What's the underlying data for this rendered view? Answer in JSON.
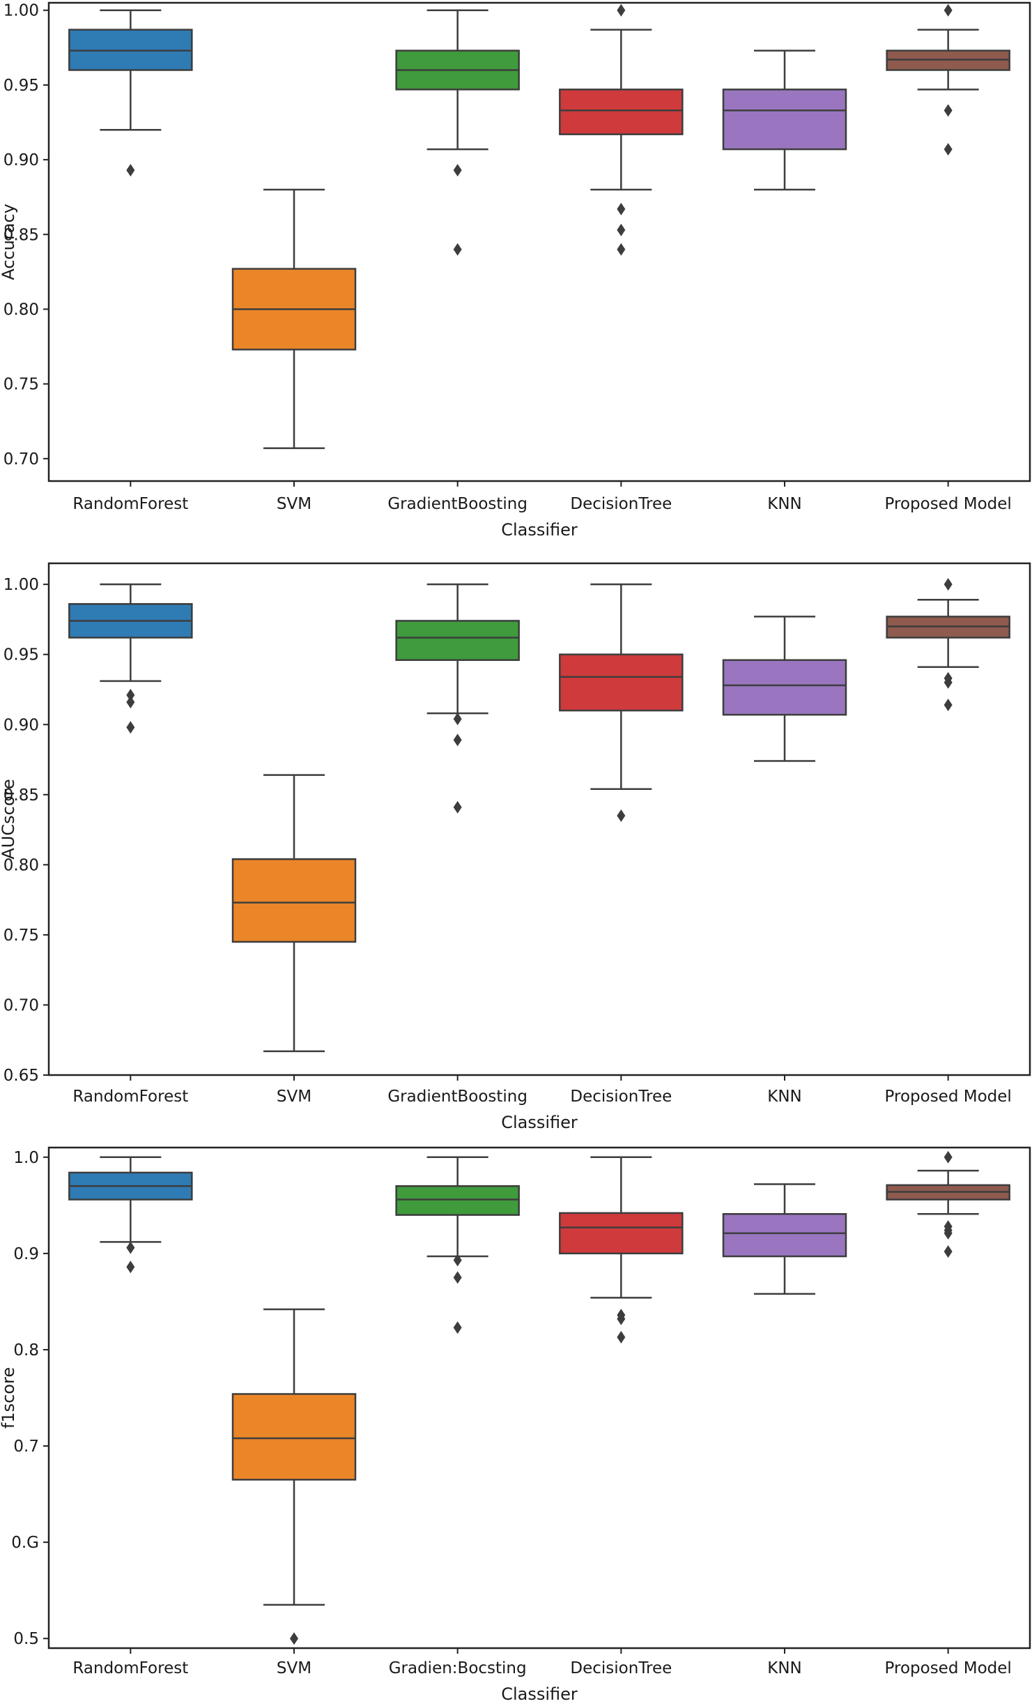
{
  "colors": {
    "RandomForest": "#2f7bb4",
    "SVM": "#ea8628",
    "GradientBoosting": "#3f9b3c",
    "DecisionTree": "#cf3a3c",
    "KNN": "#9a76c0",
    "Proposed Model": "#8e5b4e"
  },
  "chart_data": [
    {
      "type": "box",
      "xlabel": "Classifier",
      "ylabel": "Accuracy",
      "ylim": [
        0.685,
        1.005
      ],
      "yticks": [
        0.7,
        0.75,
        0.8,
        0.85,
        0.9,
        0.95,
        1.0
      ],
      "tick_decimals": 2,
      "categories": [
        "RandomForest",
        "SVM",
        "GradientBoosting",
        "DecisionTree",
        "KNN",
        "Proposed Model"
      ],
      "boxes": [
        {
          "whislo": 0.92,
          "q1": 0.96,
          "med": 0.973,
          "q3": 0.987,
          "whishi": 1.0,
          "fliers": [
            0.893
          ]
        },
        {
          "whislo": 0.707,
          "q1": 0.773,
          "med": 0.8,
          "q3": 0.827,
          "whishi": 0.88,
          "fliers": []
        },
        {
          "whislo": 0.907,
          "q1": 0.947,
          "med": 0.96,
          "q3": 0.973,
          "whishi": 1.0,
          "fliers": [
            0.893,
            0.84
          ]
        },
        {
          "whislo": 0.88,
          "q1": 0.917,
          "med": 0.933,
          "q3": 0.947,
          "whishi": 0.987,
          "fliers": [
            1.0,
            0.867,
            0.853,
            0.84
          ]
        },
        {
          "whislo": 0.88,
          "q1": 0.907,
          "med": 0.933,
          "q3": 0.947,
          "whishi": 0.973,
          "fliers": []
        },
        {
          "whislo": 0.947,
          "q1": 0.96,
          "med": 0.967,
          "q3": 0.973,
          "whishi": 0.987,
          "fliers": [
            1.0,
            0.933,
            0.907
          ]
        }
      ]
    },
    {
      "type": "box",
      "xlabel": "Classifier",
      "ylabel": "AUCscore",
      "ylim": [
        0.65,
        1.015
      ],
      "yticks": [
        0.65,
        0.7,
        0.75,
        0.8,
        0.85,
        0.9,
        0.95,
        1.0
      ],
      "tick_decimals": 2,
      "categories": [
        "RandomForest",
        "SVM",
        "GradientBoosting",
        "DecisionTree",
        "KNN",
        "Proposed Model"
      ],
      "boxes": [
        {
          "whislo": 0.931,
          "q1": 0.962,
          "med": 0.974,
          "q3": 0.986,
          "whishi": 1.0,
          "fliers": [
            0.921,
            0.916,
            0.898
          ]
        },
        {
          "whislo": 0.667,
          "q1": 0.745,
          "med": 0.773,
          "q3": 0.804,
          "whishi": 0.864,
          "fliers": []
        },
        {
          "whislo": 0.908,
          "q1": 0.946,
          "med": 0.962,
          "q3": 0.974,
          "whishi": 1.0,
          "fliers": [
            0.904,
            0.889,
            0.841
          ]
        },
        {
          "whislo": 0.854,
          "q1": 0.91,
          "med": 0.934,
          "q3": 0.95,
          "whishi": 1.0,
          "fliers": [
            0.835
          ]
        },
        {
          "whislo": 0.874,
          "q1": 0.907,
          "med": 0.928,
          "q3": 0.946,
          "whishi": 0.977,
          "fliers": []
        },
        {
          "whislo": 0.941,
          "q1": 0.962,
          "med": 0.97,
          "q3": 0.977,
          "whishi": 0.989,
          "fliers": [
            1.0,
            0.933,
            0.93,
            0.914
          ]
        }
      ]
    },
    {
      "type": "box",
      "xlabel": "Classifier",
      "ylabel": "f1score",
      "ylim": [
        0.49,
        1.01
      ],
      "yticks": [
        0.5,
        0.6,
        0.7,
        0.8,
        0.9,
        1.0
      ],
      "tick_labels": [
        "0.5",
        "0.G",
        "0.7",
        "0.8",
        "0.9",
        "1.0"
      ],
      "tick_decimals": 1,
      "categories": [
        "RandomForest",
        "SVM",
        "Gradien:Bocsting",
        "DecisionTree",
        "KNN",
        "Proposed Model"
      ],
      "boxes": [
        {
          "whislo": 0.912,
          "q1": 0.956,
          "med": 0.97,
          "q3": 0.984,
          "whishi": 1.0,
          "fliers": [
            0.906,
            0.886
          ]
        },
        {
          "whislo": 0.535,
          "q1": 0.665,
          "med": 0.708,
          "q3": 0.754,
          "whishi": 0.842,
          "fliers": [
            0.5
          ]
        },
        {
          "whislo": 0.897,
          "q1": 0.94,
          "med": 0.956,
          "q3": 0.97,
          "whishi": 1.0,
          "fliers": [
            0.893,
            0.875,
            0.823
          ]
        },
        {
          "whislo": 0.854,
          "q1": 0.9,
          "med": 0.927,
          "q3": 0.942,
          "whishi": 1.0,
          "fliers": [
            0.836,
            0.832,
            0.813
          ]
        },
        {
          "whislo": 0.858,
          "q1": 0.897,
          "med": 0.921,
          "q3": 0.941,
          "whishi": 0.972,
          "fliers": []
        },
        {
          "whislo": 0.941,
          "q1": 0.956,
          "med": 0.964,
          "q3": 0.971,
          "whishi": 0.986,
          "fliers": [
            1.0,
            0.928,
            0.924,
            0.921,
            0.902
          ]
        }
      ]
    }
  ]
}
